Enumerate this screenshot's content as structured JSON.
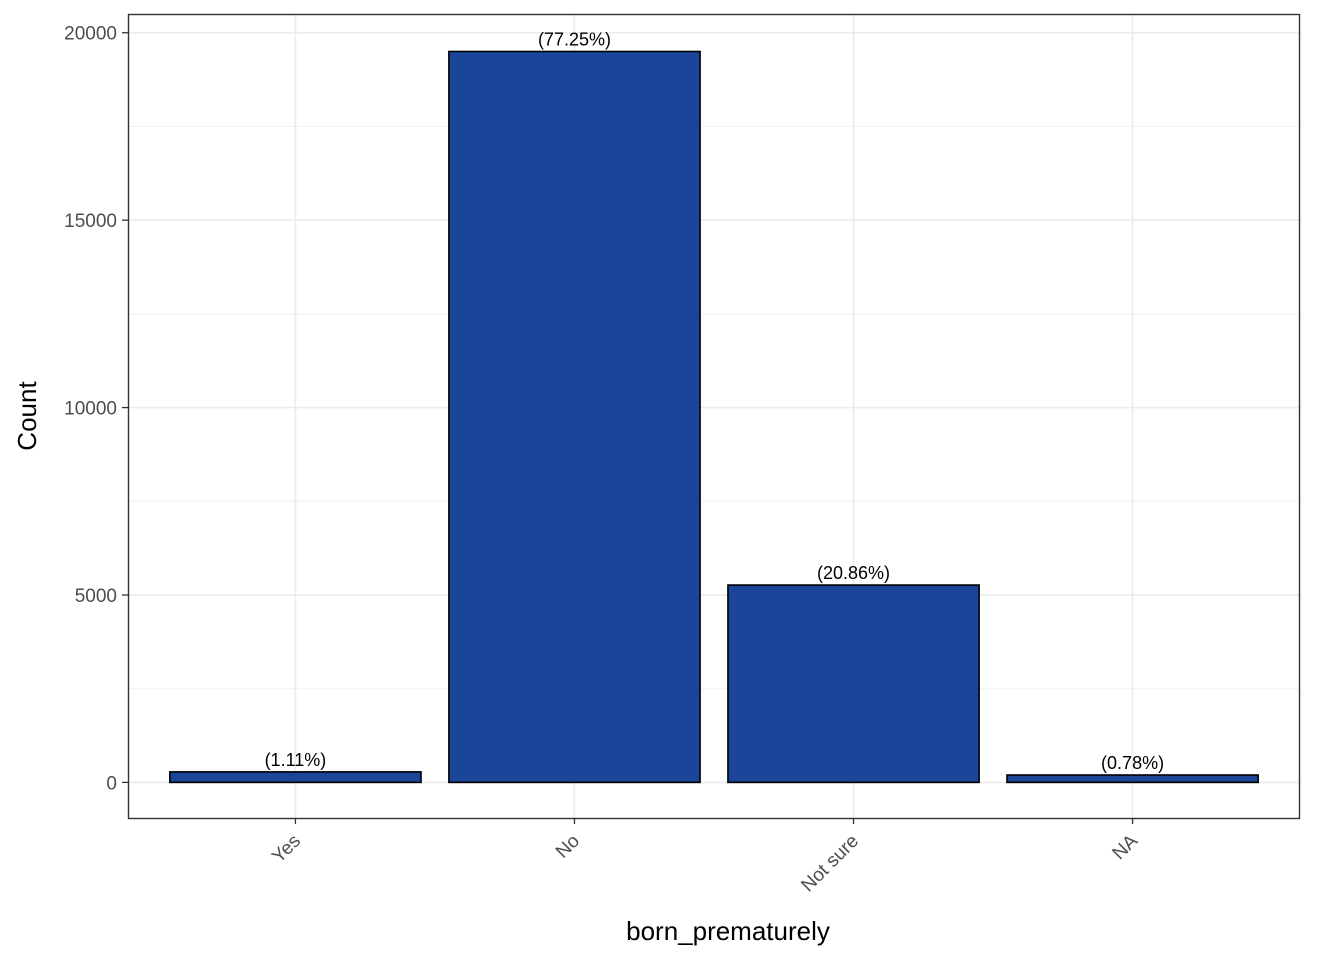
{
  "chart_data": {
    "type": "bar",
    "categories": [
      "Yes",
      "No",
      "Not sure",
      "NA"
    ],
    "values": [
      280,
      19500,
      5265,
      197
    ],
    "data_labels": [
      "(1.11%)",
      "(77.25%)",
      "(20.86%)",
      "(0.78%)"
    ],
    "title": "",
    "xlabel": "born_prematurely",
    "ylabel": "Count",
    "ylim": [
      -950,
      20500
    ],
    "y_ticks": [
      0,
      5000,
      10000,
      15000,
      20000
    ],
    "y_tick_labels": [
      "0",
      "5000",
      "10000",
      "15000",
      "20000"
    ],
    "x_tick_rotation_deg": 45,
    "grid": true,
    "legend": "none",
    "colors": {
      "bar_fill": "#1A4599",
      "bar_outline": "#000000",
      "panel_border": "#333333",
      "grid_major": "#EBEBEB",
      "grid_minor": "#F3F3F3",
      "background": "#FFFFFF"
    }
  }
}
